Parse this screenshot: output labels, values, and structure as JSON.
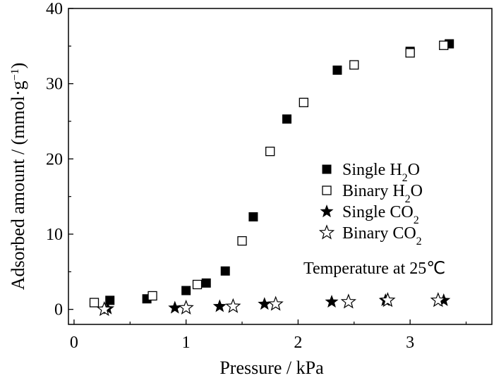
{
  "chart_data": {
    "type": "scatter",
    "xlabel": "Pressure / kPa",
    "ylabel_text": "Adsorbed amount / (mmol·g",
    "ylabel_sup": "−1",
    "ylabel_close": ")",
    "xlim": [
      -0.05,
      3.73
    ],
    "ylim": [
      -2,
      40
    ],
    "xticks": [
      0,
      1,
      2,
      3
    ],
    "yticks": [
      0,
      10,
      20,
      30,
      40
    ],
    "grid": false,
    "legend_placement": "center-right",
    "series": [
      {
        "base": "Single H",
        "sub": "2",
        "tail": "O",
        "marker": "filled-square",
        "points": [
          [
            0.32,
            1.2
          ],
          [
            0.65,
            1.4
          ],
          [
            1.0,
            2.5
          ],
          [
            1.18,
            3.5
          ],
          [
            1.35,
            5.1
          ],
          [
            1.6,
            12.3
          ],
          [
            1.9,
            25.3
          ],
          [
            2.35,
            31.8
          ],
          [
            3.0,
            34.3
          ],
          [
            3.35,
            35.3
          ]
        ]
      },
      {
        "base": "Binary H",
        "sub": "2",
        "tail": "O",
        "marker": "open-square",
        "points": [
          [
            0.18,
            0.9
          ],
          [
            0.7,
            1.8
          ],
          [
            1.1,
            3.3
          ],
          [
            1.5,
            9.1
          ],
          [
            1.75,
            21.0
          ],
          [
            2.05,
            27.5
          ],
          [
            2.5,
            32.5
          ],
          [
            3.0,
            34.1
          ],
          [
            3.3,
            35.1
          ]
        ]
      },
      {
        "base": "Single CO",
        "sub": "2",
        "tail": "",
        "marker": "filled-star",
        "points": [
          [
            0.3,
            0.1
          ],
          [
            0.9,
            0.2
          ],
          [
            1.3,
            0.4
          ],
          [
            1.7,
            0.7
          ],
          [
            2.3,
            1.0
          ],
          [
            2.78,
            1.2
          ],
          [
            3.3,
            1.2
          ]
        ]
      },
      {
        "base": "Binary CO",
        "sub": "2",
        "tail": "",
        "marker": "open-star",
        "points": [
          [
            0.27,
            0.0
          ],
          [
            1.0,
            0.2
          ],
          [
            1.42,
            0.4
          ],
          [
            1.8,
            0.7
          ],
          [
            2.45,
            1.0
          ],
          [
            2.8,
            1.2
          ],
          [
            3.25,
            1.2
          ]
        ]
      }
    ],
    "annotation": "Temperature at 25℃"
  }
}
